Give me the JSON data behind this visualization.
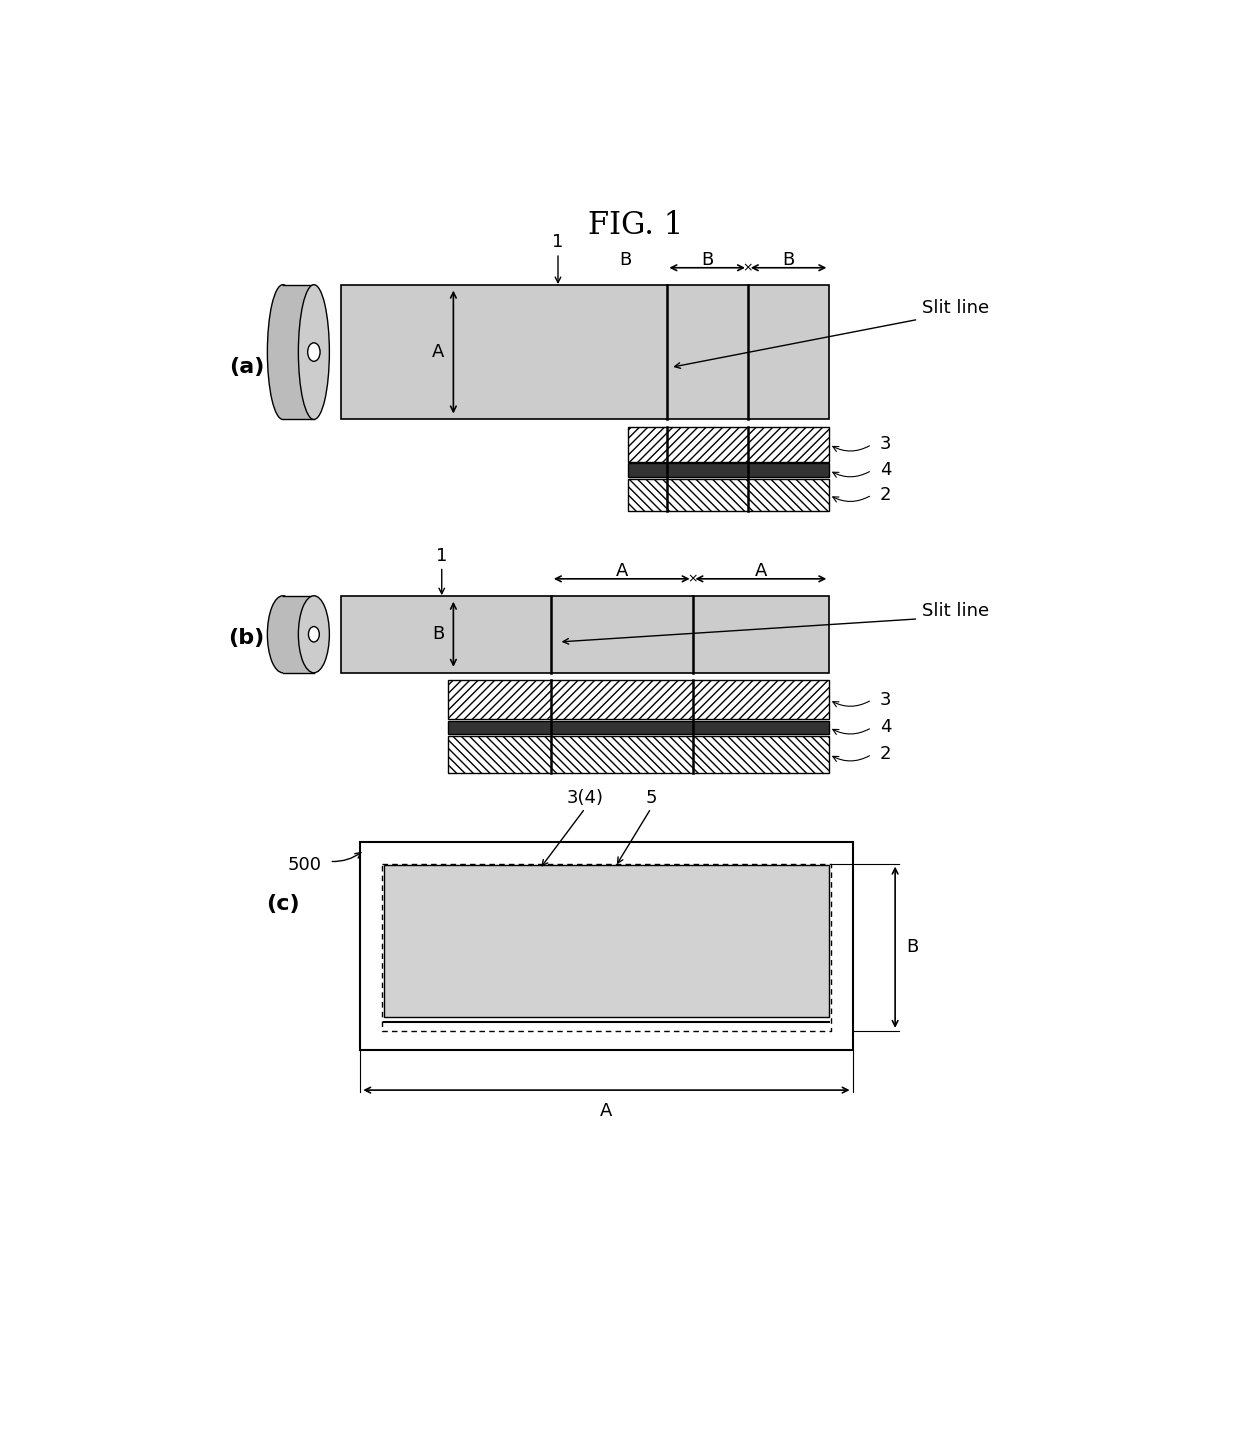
{
  "title": "FIG. 1",
  "title_fontsize": 22,
  "label_fontsize": 13,
  "bg_color": "#ffffff",
  "tape_fill": "#cccccc",
  "roll_fill": "#aaaaaa",
  "hatch_fill": "#ffffff",
  "dark_fill": "#444444",
  "panel_a_label": "(a)",
  "panel_b_label": "(b)",
  "panel_c_label": "(c)"
}
